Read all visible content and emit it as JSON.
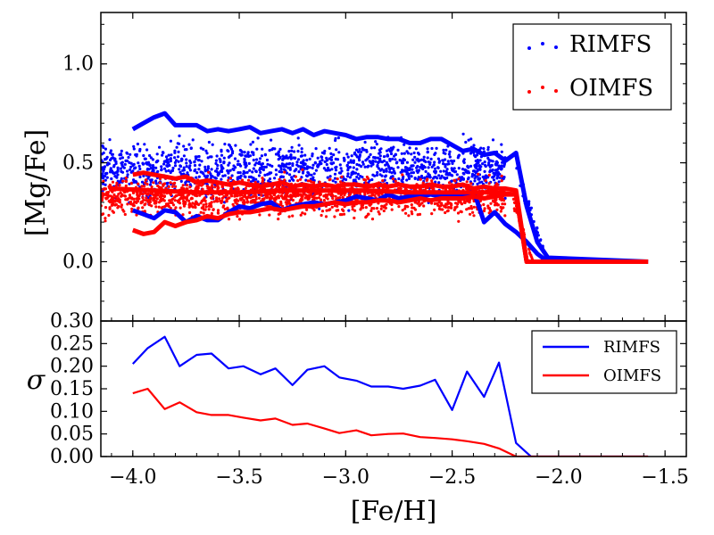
{
  "chart_data": [
    {
      "type": "scatter+line",
      "panel": "top",
      "xlabel": "[Fe/H]",
      "ylabel": "[Mg/Fe]",
      "xlim": [
        -4.15,
        -1.4
      ],
      "ylim": [
        -0.3,
        1.26
      ],
      "yticks": [
        0.0,
        0.5,
        1.0
      ],
      "ytick_labels": [
        "0.0",
        "0.5",
        "1.0"
      ],
      "legend_position": "top-right",
      "series": [
        {
          "name": "RIMFS",
          "color": "#0000ff",
          "scatter": {
            "x_range": [
              -4.15,
              -2.25
            ],
            "center_y": 0.47,
            "spread": 0.17,
            "n_points": 1400,
            "collapse_x_range": [
              -2.2,
              -2.05
            ]
          },
          "envelope_upper": {
            "x": [
              -4.0,
              -3.95,
              -3.9,
              -3.85,
              -3.8,
              -3.75,
              -3.7,
              -3.65,
              -3.6,
              -3.55,
              -3.5,
              -3.45,
              -3.4,
              -3.35,
              -3.3,
              -3.25,
              -3.2,
              -3.15,
              -3.1,
              -3.05,
              -3.0,
              -2.95,
              -2.9,
              -2.85,
              -2.8,
              -2.75,
              -2.7,
              -2.65,
              -2.6,
              -2.55,
              -2.5,
              -2.45,
              -2.4,
              -2.35,
              -2.3,
              -2.25,
              -2.2,
              -2.15,
              -2.1,
              -2.05,
              -1.58
            ],
            "y": [
              0.67,
              0.7,
              0.73,
              0.75,
              0.69,
              0.69,
              0.69,
              0.66,
              0.67,
              0.66,
              0.67,
              0.68,
              0.65,
              0.66,
              0.67,
              0.65,
              0.67,
              0.64,
              0.66,
              0.65,
              0.64,
              0.62,
              0.63,
              0.63,
              0.62,
              0.62,
              0.6,
              0.6,
              0.62,
              0.62,
              0.59,
              0.56,
              0.57,
              0.54,
              0.55,
              0.51,
              0.55,
              0.28,
              0.1,
              0.02,
              0.0
            ]
          },
          "envelope_lower": {
            "x": [
              -4.0,
              -3.95,
              -3.9,
              -3.85,
              -3.8,
              -3.75,
              -3.7,
              -3.65,
              -3.6,
              -3.55,
              -3.5,
              -3.45,
              -3.4,
              -3.35,
              -3.3,
              -3.25,
              -3.2,
              -3.15,
              -3.1,
              -3.05,
              -3.0,
              -2.95,
              -2.9,
              -2.85,
              -2.8,
              -2.75,
              -2.7,
              -2.65,
              -2.6,
              -2.55,
              -2.5,
              -2.45,
              -2.4,
              -2.35,
              -2.3,
              -2.25,
              -2.2,
              -2.15,
              -2.1,
              -2.05,
              -1.58
            ],
            "y": [
              0.26,
              0.24,
              0.22,
              0.26,
              0.25,
              0.2,
              0.23,
              0.21,
              0.21,
              0.25,
              0.28,
              0.27,
              0.29,
              0.3,
              0.26,
              0.28,
              0.29,
              0.3,
              0.29,
              0.3,
              0.31,
              0.33,
              0.32,
              0.31,
              0.34,
              0.32,
              0.33,
              0.33,
              0.34,
              0.33,
              0.34,
              0.33,
              0.36,
              0.2,
              0.25,
              0.19,
              0.15,
              0.1,
              0.04,
              0.0,
              0.0
            ]
          }
        },
        {
          "name": "OIMFS",
          "color": "#ff0000",
          "scatter": {
            "x_range": [
              -4.15,
              -2.25
            ],
            "center_y": 0.33,
            "spread": 0.11,
            "n_points": 1600,
            "collapse_x_range": [
              -2.22,
              -2.12
            ]
          },
          "envelope_upper": {
            "x": [
              -4.0,
              -3.95,
              -3.9,
              -3.85,
              -3.8,
              -3.75,
              -3.7,
              -3.65,
              -3.6,
              -3.55,
              -3.5,
              -3.45,
              -3.4,
              -3.35,
              -3.3,
              -3.25,
              -3.2,
              -3.15,
              -3.1,
              -3.05,
              -3.0,
              -2.95,
              -2.9,
              -2.85,
              -2.8,
              -2.75,
              -2.7,
              -2.65,
              -2.6,
              -2.55,
              -2.5,
              -2.45,
              -2.4,
              -2.35,
              -2.3,
              -2.25,
              -2.2,
              -2.15,
              -2.1,
              -1.58
            ],
            "y": [
              0.44,
              0.45,
              0.44,
              0.43,
              0.42,
              0.43,
              0.4,
              0.41,
              0.4,
              0.39,
              0.4,
              0.39,
              0.38,
              0.39,
              0.4,
              0.38,
              0.39,
              0.38,
              0.39,
              0.38,
              0.39,
              0.39,
              0.38,
              0.39,
              0.38,
              0.39,
              0.38,
              0.38,
              0.39,
              0.38,
              0.38,
              0.39,
              0.37,
              0.38,
              0.37,
              0.37,
              0.36,
              0.0,
              0.0,
              0.0
            ]
          },
          "envelope_lower": {
            "x": [
              -4.0,
              -3.95,
              -3.9,
              -3.85,
              -3.8,
              -3.75,
              -3.7,
              -3.65,
              -3.6,
              -3.55,
              -3.5,
              -3.45,
              -3.4,
              -3.35,
              -3.3,
              -3.25,
              -3.2,
              -3.15,
              -3.1,
              -3.05,
              -3.0,
              -2.95,
              -2.9,
              -2.85,
              -2.8,
              -2.75,
              -2.7,
              -2.65,
              -2.6,
              -2.55,
              -2.5,
              -2.45,
              -2.4,
              -2.35,
              -2.3,
              -2.25,
              -2.2,
              -2.15,
              -2.1,
              -1.58
            ],
            "y": [
              0.16,
              0.14,
              0.15,
              0.2,
              0.18,
              0.2,
              0.21,
              0.23,
              0.22,
              0.24,
              0.25,
              0.25,
              0.26,
              0.27,
              0.26,
              0.27,
              0.28,
              0.28,
              0.29,
              0.3,
              0.29,
              0.3,
              0.3,
              0.31,
              0.31,
              0.3,
              0.31,
              0.32,
              0.31,
              0.32,
              0.32,
              0.32,
              0.33,
              0.32,
              0.33,
              0.34,
              0.34,
              0.0,
              0.0,
              0.0
            ]
          },
          "center_line": {
            "x": [
              -4.1,
              -3.9,
              -3.7,
              -3.5,
              -3.3,
              -3.1,
              -2.9,
              -2.7,
              -2.5,
              -2.3,
              -2.2,
              -2.15,
              -1.58
            ],
            "y": [
              0.37,
              0.36,
              0.35,
              0.35,
              0.36,
              0.36,
              0.36,
              0.35,
              0.35,
              0.35,
              0.34,
              0.0,
              0.0
            ]
          }
        }
      ]
    },
    {
      "type": "line",
      "panel": "bottom",
      "xlabel": "[Fe/H]",
      "ylabel": "σ",
      "xlim": [
        -4.15,
        -1.4
      ],
      "ylim": [
        0.0,
        0.3
      ],
      "xticks": [
        -4.0,
        -3.5,
        -3.0,
        -2.5,
        -2.0,
        -1.5
      ],
      "xtick_labels": [
        "−4.0",
        "−3.5",
        "−3.0",
        "−2.5",
        "−2.0",
        "−1.5"
      ],
      "yticks": [
        0.0,
        0.05,
        0.1,
        0.15,
        0.2,
        0.25,
        0.3
      ],
      "ytick_labels": [
        "0.00",
        "0.05",
        "0.10",
        "0.15",
        "0.20",
        "0.25",
        "0.30"
      ],
      "legend_position": "top-right",
      "x": [
        -4.0,
        -3.93,
        -3.85,
        -3.78,
        -3.7,
        -3.63,
        -3.55,
        -3.48,
        -3.4,
        -3.33,
        -3.25,
        -3.18,
        -3.1,
        -3.03,
        -2.95,
        -2.88,
        -2.8,
        -2.73,
        -2.65,
        -2.58,
        -2.5,
        -2.43,
        -2.35,
        -2.28,
        -2.2,
        -2.13,
        -2.05,
        -1.98,
        -1.9,
        -1.8,
        -1.7,
        -1.58
      ],
      "series": [
        {
          "name": "RIMFS",
          "color": "#0000ff",
          "values": [
            0.205,
            0.24,
            0.265,
            0.2,
            0.225,
            0.228,
            0.195,
            0.2,
            0.182,
            0.195,
            0.158,
            0.192,
            0.2,
            0.175,
            0.168,
            0.155,
            0.155,
            0.15,
            0.157,
            0.17,
            0.103,
            0.188,
            0.132,
            0.208,
            0.03,
            0.0,
            0.0,
            0.0,
            0.0,
            0.0,
            0.0,
            0.0
          ]
        },
        {
          "name": "OIMFS",
          "color": "#ff0000",
          "values": [
            0.14,
            0.15,
            0.105,
            0.12,
            0.098,
            0.092,
            0.092,
            0.086,
            0.08,
            0.084,
            0.07,
            0.073,
            0.062,
            0.052,
            0.058,
            0.047,
            0.05,
            0.051,
            0.043,
            0.041,
            0.038,
            0.034,
            0.028,
            0.018,
            0.0,
            0.0,
            0.0,
            0.0,
            0.0,
            0.0,
            0.0,
            0.0
          ]
        }
      ]
    }
  ]
}
